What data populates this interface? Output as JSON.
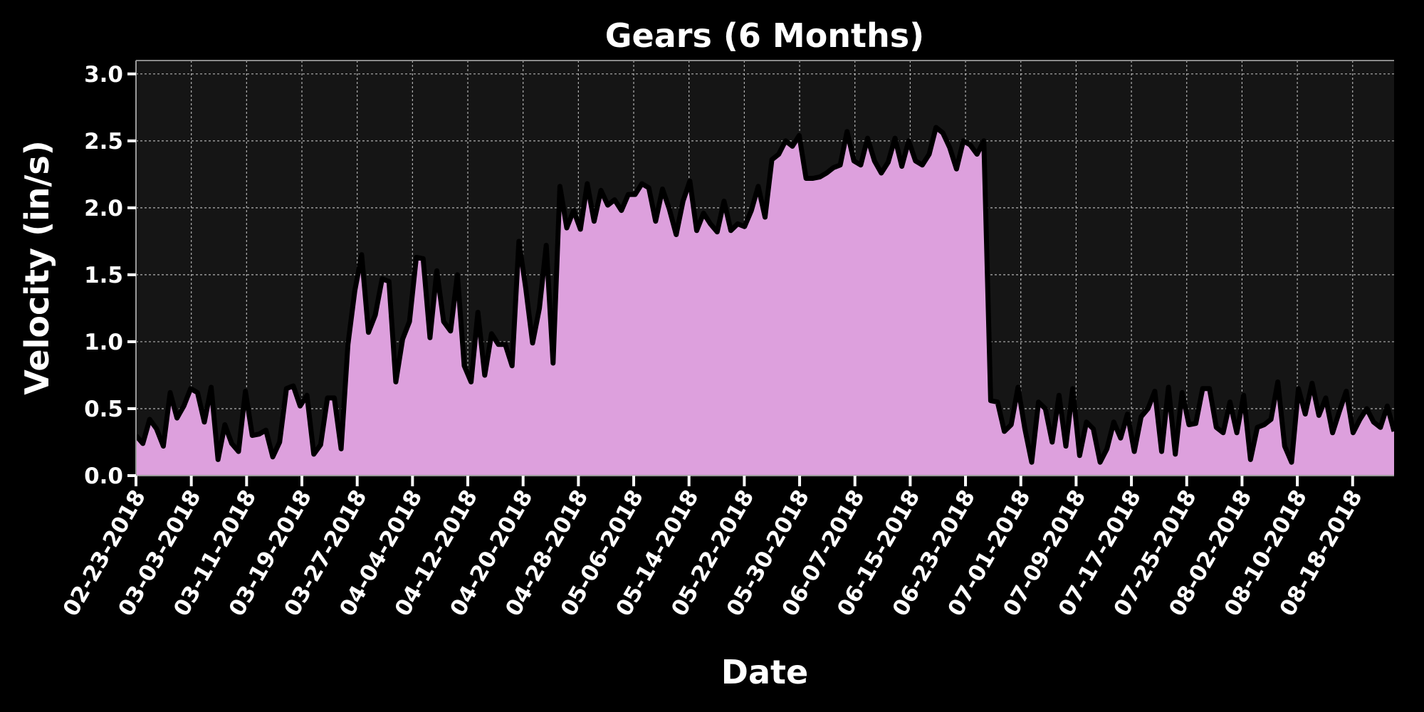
{
  "chart_data": {
    "type": "area",
    "title": "Gears (6 Months)",
    "xlabel": "Date",
    "ylabel": "Velocity (in/s)",
    "ylim": [
      0,
      3.1
    ],
    "yticks": [
      "0.0",
      "0.5",
      "1.0",
      "1.5",
      "2.0",
      "2.5",
      "3.0"
    ],
    "xticks": [
      "02-23-2018",
      "03-03-2018",
      "03-11-2018",
      "03-19-2018",
      "03-27-2018",
      "04-04-2018",
      "04-12-2018",
      "04-20-2018",
      "04-28-2018",
      "05-06-2018",
      "05-14-2018",
      "05-22-2018",
      "05-30-2018",
      "06-07-2018",
      "06-15-2018",
      "06-23-2018",
      "07-01-2018",
      "07-09-2018",
      "07-17-2018",
      "07-25-2018",
      "08-02-2018",
      "08-10-2018",
      "08-18-2018"
    ],
    "x_start": "02-23-2018",
    "x_end": "08-24-2018",
    "grid": true,
    "colors": {
      "fill": "#dda0dd",
      "line": "#000000",
      "plot_bg": "#151515",
      "background": "#000000"
    },
    "values": [
      0.3,
      0.24,
      0.42,
      0.35,
      0.22,
      0.62,
      0.43,
      0.52,
      0.65,
      0.62,
      0.4,
      0.66,
      0.12,
      0.38,
      0.24,
      0.18,
      0.63,
      0.3,
      0.31,
      0.34,
      0.14,
      0.25,
      0.65,
      0.67,
      0.52,
      0.6,
      0.16,
      0.23,
      0.58,
      0.58,
      0.2,
      0.98,
      1.38,
      1.65,
      1.07,
      1.2,
      1.47,
      1.45,
      0.7,
      1.02,
      1.15,
      1.63,
      1.62,
      1.03,
      1.53,
      1.15,
      1.08,
      1.5,
      0.82,
      0.7,
      1.22,
      0.75,
      1.06,
      0.98,
      0.98,
      0.82,
      1.75,
      1.4,
      0.99,
      1.25,
      1.72,
      0.84,
      2.16,
      1.85,
      1.98,
      1.84,
      2.18,
      1.9,
      2.13,
      2.02,
      2.06,
      1.98,
      2.1,
      2.1,
      2.18,
      2.15,
      1.9,
      2.14,
      1.99,
      1.8,
      2.05,
      2.2,
      1.83,
      1.96,
      1.88,
      1.82,
      2.05,
      1.83,
      1.88,
      1.86,
      1.98,
      2.16,
      1.93,
      2.36,
      2.4,
      2.5,
      2.46,
      2.54,
      2.22,
      2.22,
      2.23,
      2.26,
      2.3,
      2.32,
      2.57,
      2.35,
      2.32,
      2.52,
      2.35,
      2.26,
      2.34,
      2.52,
      2.31,
      2.5,
      2.35,
      2.32,
      2.4,
      2.6,
      2.56,
      2.45,
      2.29,
      2.5,
      2.47,
      2.4,
      2.5,
      0.56,
      0.55,
      0.33,
      0.38,
      0.66,
      0.35,
      0.1,
      0.55,
      0.5,
      0.25,
      0.6,
      0.22,
      0.65,
      0.15,
      0.4,
      0.35,
      0.1,
      0.2,
      0.4,
      0.28,
      0.46,
      0.18,
      0.44,
      0.5,
      0.63,
      0.18,
      0.66,
      0.16,
      0.62,
      0.38,
      0.39,
      0.65,
      0.65,
      0.36,
      0.32,
      0.55,
      0.32,
      0.6,
      0.12,
      0.36,
      0.38,
      0.42,
      0.7,
      0.22,
      0.1,
      0.65,
      0.46,
      0.69,
      0.45,
      0.58,
      0.32,
      0.48,
      0.63,
      0.32,
      0.42,
      0.5,
      0.4,
      0.36,
      0.52,
      0.33
    ]
  }
}
